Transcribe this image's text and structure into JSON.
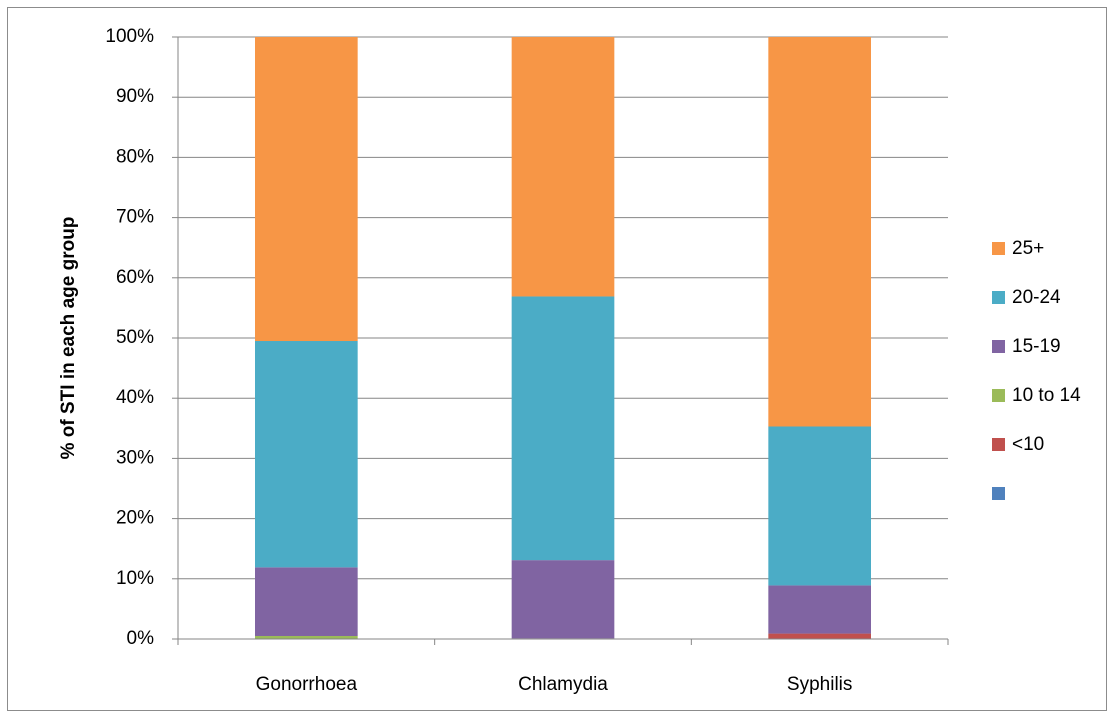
{
  "chart_data": {
    "type": "bar",
    "stacked": true,
    "stack_mode": "percent",
    "title": "",
    "xlabel": "",
    "ylabel": "% of STI in each age group",
    "ylim": [
      0,
      100
    ],
    "yticks": [
      "0%",
      "10%",
      "20%",
      "30%",
      "40%",
      "50%",
      "60%",
      "70%",
      "80%",
      "90%",
      "100%"
    ],
    "categories": [
      "Gonorrhoea",
      "Chlamydia",
      "Syphilis"
    ],
    "series": [
      {
        "legend": "",
        "color": "#4F81BD",
        "values": [
          0,
          0,
          0
        ]
      },
      {
        "name": "<10",
        "color": "#C0504D",
        "values": [
          0,
          0,
          0.9
        ]
      },
      {
        "name": "10 to 14",
        "color": "#9BBB59",
        "values": [
          0.5,
          0.1,
          0
        ]
      },
      {
        "name": "15-19",
        "color": "#8064A2",
        "values": [
          11.4,
          13.0,
          8.0
        ]
      },
      {
        "name": "20-24",
        "color": "#4BACC6",
        "values": [
          37.6,
          43.8,
          26.4
        ]
      },
      {
        "name": "25+",
        "color": "#F79646",
        "values": [
          50.5,
          43.1,
          64.7
        ]
      }
    ],
    "legend_position": "right",
    "grid": true
  }
}
